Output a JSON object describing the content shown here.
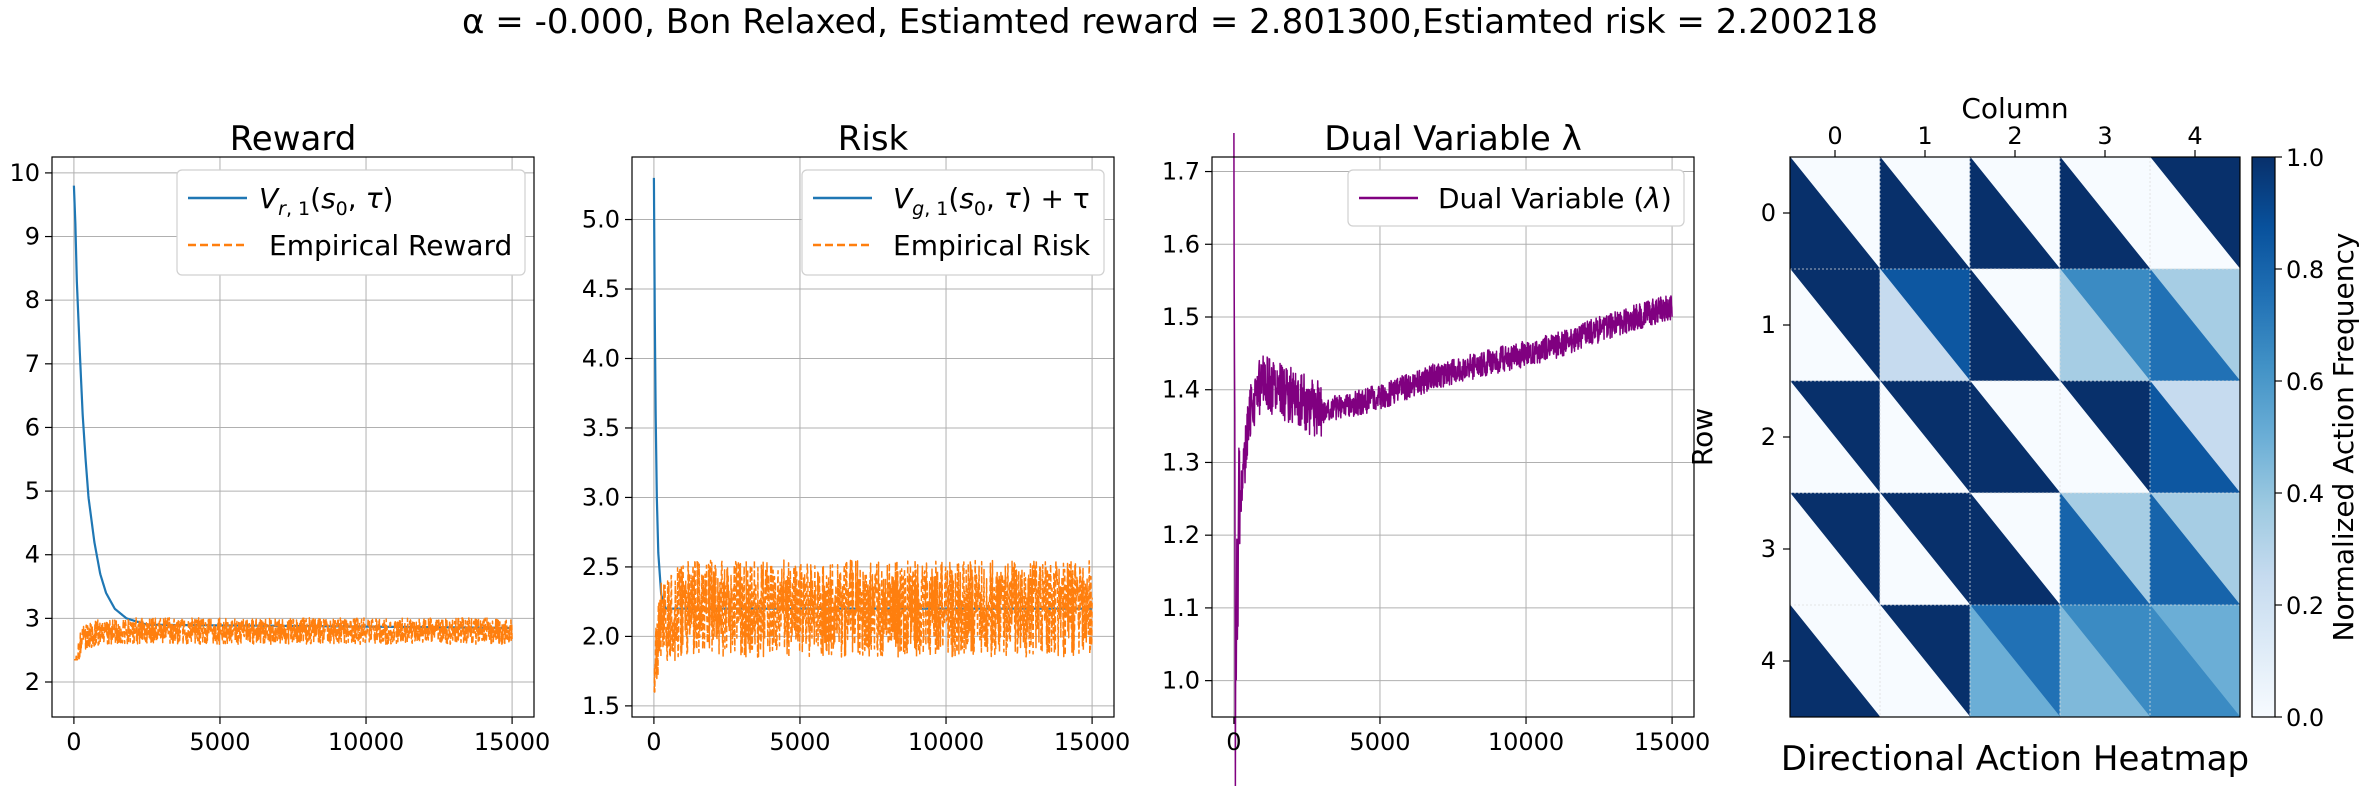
{
  "figure": {
    "title": "α = -0.000, Bon Relaxed, Estiamted reward = 2.801300,Estiamted risk = 2.200218"
  },
  "colors": {
    "series_blue": "#1f77b4",
    "series_orange": "#ff7f0e",
    "series_purple": "#800080",
    "grid": "#b0b0b0",
    "heat_low": "#f7fbff",
    "heat_high": "#08306b"
  },
  "chart_data": [
    {
      "type": "line",
      "title": "Reward",
      "xlim": [
        -750,
        15750
      ],
      "ylim": [
        1.45,
        10.25
      ],
      "xticks": [
        0,
        5000,
        10000,
        15000
      ],
      "yticks": [
        2,
        3,
        4,
        5,
        6,
        7,
        8,
        9,
        10
      ],
      "grid": true,
      "legend_position": "top-right",
      "series": [
        {
          "name": "V_{r,1}(s_0, τ)",
          "style": "solid",
          "color": "#1f77b4",
          "points": [
            [
              0,
              9.8
            ],
            [
              50,
              9.2
            ],
            [
              100,
              8.3
            ],
            [
              200,
              7.2
            ],
            [
              300,
              6.2
            ],
            [
              400,
              5.5
            ],
            [
              500,
              4.9
            ],
            [
              700,
              4.2
            ],
            [
              900,
              3.7
            ],
            [
              1100,
              3.4
            ],
            [
              1400,
              3.15
            ],
            [
              1800,
              3.0
            ],
            [
              2500,
              2.9
            ],
            [
              15000,
              2.85
            ]
          ]
        },
        {
          "name": "Empirical Reward",
          "style": "dashed",
          "color": "#ff7f0e",
          "noisy": true,
          "points": [
            [
              0,
              1.75
            ],
            [
              100,
              2.4
            ],
            [
              300,
              2.7
            ],
            [
              1000,
              2.8
            ],
            [
              15000,
              2.8
            ]
          ],
          "band": [
            2.35,
            3.3
          ]
        }
      ]
    },
    {
      "type": "line",
      "title": "Risk",
      "xlim": [
        -750,
        15750
      ],
      "ylim": [
        1.42,
        5.45
      ],
      "xticks": [
        0,
        5000,
        10000,
        15000
      ],
      "yticks": [
        1.5,
        2.0,
        2.5,
        3.0,
        3.5,
        4.0,
        4.5,
        5.0
      ],
      "ytick_labels": [
        "1.5",
        "2.0",
        "2.5",
        "3.0",
        "3.5",
        "4.0",
        "4.5",
        "5.0"
      ],
      "grid": true,
      "legend_position": "top-right",
      "series": [
        {
          "name": "V_{g,1}(s_0, τ) + τ",
          "style": "solid",
          "color": "#1f77b4",
          "points": [
            [
              0,
              5.3
            ],
            [
              30,
              4.3
            ],
            [
              60,
              3.6
            ],
            [
              100,
              3.0
            ],
            [
              150,
              2.6
            ],
            [
              250,
              2.3
            ],
            [
              400,
              2.2
            ],
            [
              15000,
              2.2
            ]
          ]
        },
        {
          "name": "Empirical Risk",
          "style": "dashed",
          "color": "#ff7f0e",
          "noisy": true,
          "points": [
            [
              0,
              1.65
            ],
            [
              200,
              2.1
            ],
            [
              1000,
              2.2
            ],
            [
              15000,
              2.2
            ]
          ],
          "band": [
            1.6,
            2.85
          ]
        }
      ]
    },
    {
      "type": "line",
      "title": "Dual Variable λ",
      "xlim": [
        -750,
        15750
      ],
      "ylim": [
        0.95,
        1.72
      ],
      "xticks": [
        0,
        5000,
        10000,
        15000
      ],
      "yticks": [
        1.0,
        1.1,
        1.2,
        1.3,
        1.4,
        1.5,
        1.6,
        1.7
      ],
      "ytick_labels": [
        "1.0",
        "1.1",
        "1.2",
        "1.3",
        "1.4",
        "1.5",
        "1.6",
        "1.7"
      ],
      "grid": true,
      "legend_position": "top-right",
      "series": [
        {
          "name": "Dual Variable (λ)",
          "style": "solid",
          "color": "#800080",
          "noisy": true,
          "points": [
            [
              0,
              1.69
            ],
            [
              50,
              0.97
            ],
            [
              150,
              1.2
            ],
            [
              300,
              1.28
            ],
            [
              600,
              1.38
            ],
            [
              1000,
              1.41
            ],
            [
              2000,
              1.39
            ],
            [
              3000,
              1.37
            ],
            [
              4000,
              1.38
            ],
            [
              5000,
              1.39
            ],
            [
              7000,
              1.42
            ],
            [
              9000,
              1.44
            ],
            [
              11000,
              1.46
            ],
            [
              13000,
              1.49
            ],
            [
              15000,
              1.515
            ]
          ]
        }
      ]
    },
    {
      "type": "heatmap",
      "title": "Directional Action Heatmap",
      "xlabel": "Column",
      "ylabel": "Row",
      "columns": [
        "0",
        "1",
        "2",
        "3",
        "4"
      ],
      "rows": [
        "0",
        "1",
        "2",
        "3",
        "4"
      ],
      "colorbar_label": "Normalized Action Frequency",
      "colorbar_ticks": [
        "0.0",
        "0.2",
        "0.4",
        "0.6",
        "0.8",
        "1.0"
      ],
      "vrange": [
        0,
        1
      ],
      "cell_value_layout": "each cell split along its diagonal into an upper-right triangle value and a lower-left triangle value",
      "cells": [
        [
          [
            0.0,
            1.0
          ],
          [
            0.0,
            1.0
          ],
          [
            0.0,
            1.0
          ],
          [
            0.0,
            1.0
          ],
          [
            1.0,
            0.0
          ]
        ],
        [
          [
            1.0,
            0.0
          ],
          [
            0.85,
            0.25
          ],
          [
            0.0,
            1.0
          ],
          [
            0.65,
            0.35
          ],
          [
            0.35,
            0.75
          ]
        ],
        [
          [
            1.0,
            0.0
          ],
          [
            1.0,
            0.0
          ],
          [
            0.0,
            1.0
          ],
          [
            1.0,
            0.0
          ],
          [
            0.25,
            0.85
          ]
        ],
        [
          [
            1.0,
            0.0
          ],
          [
            1.0,
            0.0
          ],
          [
            0.0,
            1.0
          ],
          [
            0.35,
            0.8
          ],
          [
            0.35,
            0.8
          ]
        ],
        [
          [
            0.0,
            1.0
          ],
          [
            1.0,
            0.0
          ],
          [
            0.75,
            0.5
          ],
          [
            0.65,
            0.45
          ],
          [
            0.5,
            0.65
          ]
        ]
      ]
    }
  ]
}
